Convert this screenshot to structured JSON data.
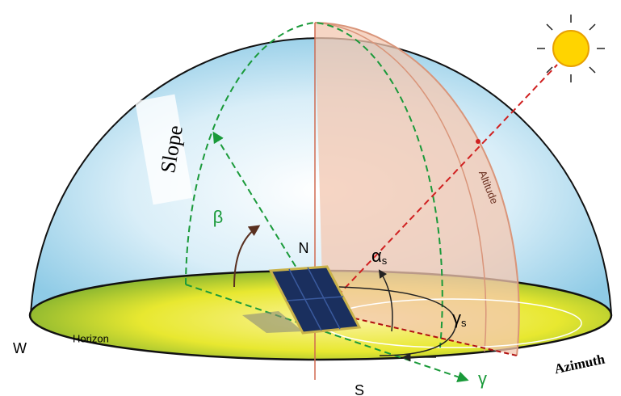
{
  "labels": {
    "slope": "Slope",
    "beta": "β",
    "north": "N",
    "alpha": "α",
    "alpha_sub": "s",
    "altitude": "Altitude",
    "gamma_s": "γ",
    "gamma_s_sub": "s",
    "west": "W",
    "horizon": "Horizon",
    "south": "S",
    "gamma": "γ",
    "azimuth": "Azimuth"
  }
}
